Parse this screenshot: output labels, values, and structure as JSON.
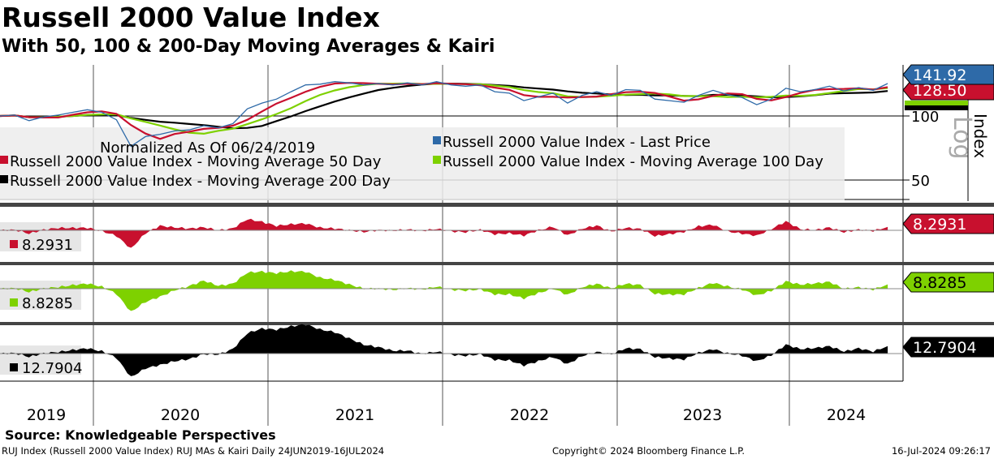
{
  "header": {
    "title": "Russell 2000 Value Index",
    "subtitle": "With 50, 100 & 200-Day Moving Averages & Kairi"
  },
  "footer": {
    "source": "Source: Knowledgeable Perspectives",
    "description": "RUJ Index (Russell 2000 Value Index) RUJ MAs & Kairi  Daily 24JUN2019-16JUL2024",
    "copyright": "Copyright© 2024 Bloomberg Finance L.P.",
    "timestamp": "16-Jul-2024 09:26:17"
  },
  "chart_data": {
    "type": "line",
    "title": "Russell 2000 Value Index",
    "note": "Normalized As Of 06/24/2019",
    "ylabel": "Index",
    "scale_label": "Log",
    "y_ticks": [
      {
        "value": 100,
        "label": "100"
      },
      {
        "value": 50,
        "label": "50"
      }
    ],
    "x_tick_labels": [
      "2019",
      "2020",
      "2021",
      "2022",
      "2023",
      "2024"
    ],
    "x_months": "Jun 2019 - Jul 2024 (monthly)",
    "price": [
      100,
      101,
      95,
      99,
      101,
      104,
      107,
      104,
      96,
      72,
      80,
      82,
      85,
      86,
      90,
      88,
      92,
      108,
      115,
      120,
      130,
      140,
      141,
      145,
      143,
      140,
      142,
      140,
      143,
      140,
      145,
      140,
      138,
      140,
      130,
      128,
      118,
      123,
      128,
      115,
      125,
      130,
      125,
      133,
      132,
      120,
      118,
      116,
      125,
      132,
      126,
      122,
      113,
      120,
      135,
      130,
      133,
      138,
      131,
      136,
      132,
      142
    ],
    "ma_windows_months": [
      2,
      5,
      9
    ],
    "legend": [
      {
        "label": "Russell 2000 Value Index - Last Price",
        "color": "#2e6aa8"
      },
      {
        "label": "Russell 2000 Value Index - Moving Average 50 Day",
        "color": "#c8102e"
      },
      {
        "label": "Russell 2000 Value Index - Moving Average 100 Day",
        "color": "#7ed100"
      },
      {
        "label": "Russell 2000 Value Index - Moving Average 200 Day",
        "color": "#000000"
      }
    ],
    "last_values": {
      "price": "141.92",
      "ma50": "128.50"
    },
    "kairi": [
      {
        "name": "Kairi 50 Day",
        "last": "8.2931",
        "color": "#c8102e"
      },
      {
        "name": "Kairi 100 Day",
        "last": "8.8285",
        "color": "#7ed100"
      },
      {
        "name": "Kairi 200 Day",
        "last": "12.7904",
        "color": "#000000"
      }
    ]
  }
}
